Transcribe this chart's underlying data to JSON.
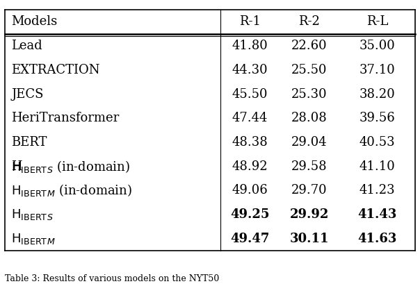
{
  "title": "",
  "caption": "Table 3: Results of various models on the NYT50",
  "header": [
    "Models",
    "R-1",
    "R-2",
    "R-L"
  ],
  "rows": [
    {
      "model": "Lead",
      "r1": "41.80",
      "r2": "22.60",
      "rl": "35.00",
      "bold": false
    },
    {
      "model": "EXTRACTION",
      "r1": "44.30",
      "r2": "25.50",
      "rl": "37.10",
      "bold": false
    },
    {
      "model": "JECS",
      "r1": "45.50",
      "r2": "25.30",
      "rl": "38.20",
      "bold": false
    },
    {
      "model": "HeriTransformer",
      "r1": "47.44",
      "r2": "28.08",
      "rl": "39.56",
      "bold": false
    },
    {
      "model": "BERT",
      "r1": "48.38",
      "r2": "29.04",
      "rl": "40.53",
      "bold": false
    },
    {
      "model": "HIBERT_S_indomain",
      "r1": "48.92",
      "r2": "29.58",
      "rl": "41.10",
      "bold": false
    },
    {
      "model": "HIBERT_M_indomain",
      "r1": "49.06",
      "r2": "29.70",
      "rl": "41.23",
      "bold": false
    },
    {
      "model": "HIBERT_S",
      "r1": "49.25",
      "r2": "29.92",
      "rl": "41.43",
      "bold": true
    },
    {
      "model": "HIBERT_M",
      "r1": "49.47",
      "r2": "30.11",
      "rl": "41.63",
      "bold": true
    }
  ],
  "bg_color": "#ffffff",
  "line_color": "#000000",
  "font_size": 13,
  "header_font_size": 13
}
